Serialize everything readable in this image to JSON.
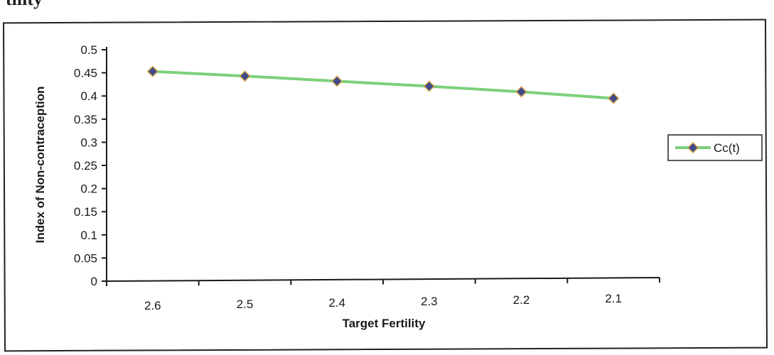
{
  "page": {
    "cut_text": "tility"
  },
  "chart_data": {
    "type": "line",
    "title": "",
    "xlabel": "Target Fertility",
    "ylabel": "Index of Non-contraception",
    "categories": [
      "2.6",
      "2.5",
      "2.4",
      "2.3",
      "2.2",
      "2.1"
    ],
    "series": [
      {
        "name": "Cc(t)",
        "values": [
          0.453,
          0.443,
          0.432,
          0.421,
          0.409,
          0.395
        ],
        "line_color": "#7cd07c",
        "marker": "diamond",
        "marker_fill": "#3f4a8c",
        "marker_edge": "#d4a24a"
      }
    ],
    "ylim": [
      0,
      0.5
    ],
    "yticks": [
      "0",
      "0.05",
      "0.1",
      "0.15",
      "0.2",
      "0.25",
      "0.3",
      "0.35",
      "0.4",
      "0.45",
      "0.5"
    ],
    "grid": false,
    "legend": "right"
  }
}
